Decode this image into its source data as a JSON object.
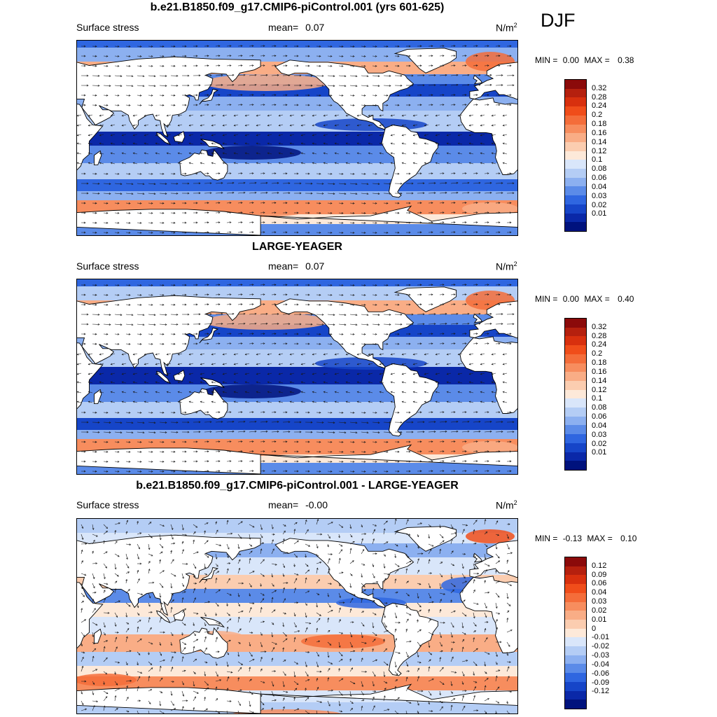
{
  "season": "DJF",
  "panels": [
    {
      "title": "b.e21.B1850.f09_g17.CMIP6-piControl.001 (yrs 601-625)",
      "left_label": "Surface stress",
      "mean_label": "mean=",
      "mean_value": "0.07",
      "units_base": "N/m",
      "units_exp": "2",
      "min_label": "MIN =",
      "min_value": "0.00",
      "max_label": "MAX =",
      "max_value": "0.38",
      "colorbar_labels": [
        "0.32",
        "0.28",
        "0.24",
        "0.2",
        "0.18",
        "0.16",
        "0.14",
        "0.12",
        "0.1",
        "0.08",
        "0.06",
        "0.04",
        "0.03",
        "0.02",
        "0.01"
      ]
    },
    {
      "title": "LARGE-YEAGER",
      "left_label": "Surface stress",
      "mean_label": "mean=",
      "mean_value": "0.07",
      "units_base": "N/m",
      "units_exp": "2",
      "min_label": "MIN =",
      "min_value": "0.00",
      "max_label": "MAX =",
      "max_value": "0.40",
      "colorbar_labels": [
        "0.32",
        "0.28",
        "0.24",
        "0.2",
        "0.18",
        "0.16",
        "0.14",
        "0.12",
        "0.1",
        "0.08",
        "0.06",
        "0.04",
        "0.03",
        "0.02",
        "0.01"
      ]
    },
    {
      "title": "b.e21.B1850.f09_g17.CMIP6-piControl.001 - LARGE-YEAGER",
      "left_label": "Surface stress",
      "mean_label": "mean=",
      "mean_value": "-0.00",
      "units_base": "N/m",
      "units_exp": "2",
      "min_label": "MIN =",
      "min_value": "-0.13",
      "max_label": "MAX =",
      "max_value": "0.10",
      "colorbar_labels": [
        "0.12",
        "0.09",
        "0.06",
        "0.04",
        "0.03",
        "0.02",
        "0.01",
        "0",
        "-0.01",
        "-0.02",
        "-0.03",
        "-0.04",
        "-0.06",
        "-0.09",
        "-0.12"
      ]
    }
  ],
  "colors": {
    "abs_scale": [
      "#8b0a0a",
      "#b5200e",
      "#d8300e",
      "#f04d1a",
      "#f46d3a",
      "#f78d5e",
      "#f9ad86",
      "#fbcdb0",
      "#fde9d9",
      "#d9e6fa",
      "#b4cdf5",
      "#8cb0f0",
      "#5b8be8",
      "#2f66e0",
      "#1645c8",
      "#0a28a8",
      "#00127d"
    ],
    "diff_scale": [
      "#8b0a0a",
      "#b5200e",
      "#d8300e",
      "#f04d1a",
      "#f46d3a",
      "#f78d5e",
      "#f9ad86",
      "#fbcdb0",
      "#fde9d9",
      "#d9e6fa",
      "#b4cdf5",
      "#8cb0f0",
      "#5b8be8",
      "#2f66e0",
      "#1645c8",
      "#0a28a8",
      "#00127d"
    ],
    "land": "#ffffff",
    "coast": "#000000"
  }
}
